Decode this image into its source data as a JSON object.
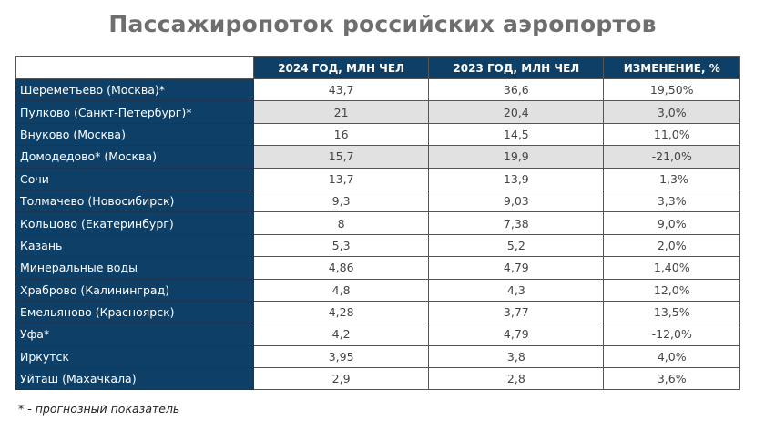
{
  "title": "Пассажиропоток российских аэропортов",
  "chart_data": {
    "type": "table",
    "title": "Пассажиропоток российских аэропортов",
    "columns": [
      "",
      "2024 ГОД, МЛН ЧЕЛ",
      "2023 ГОД, МЛН ЧЕЛ",
      "ИЗМЕНЕНИЕ, %"
    ],
    "rows": [
      {
        "name": "Шереметьево (Москва)*",
        "y2024": "43,7",
        "y2023": "36,6",
        "change": "19,50%",
        "shaded": false
      },
      {
        "name": "Пулково (Санкт-Петербург)*",
        "y2024": "21",
        "y2023": "20,4",
        "change": "3,0%",
        "shaded": true
      },
      {
        "name": "Внуково (Москва)",
        "y2024": "16",
        "y2023": "14,5",
        "change": "11,0%",
        "shaded": false
      },
      {
        "name": "Домодедово* (Москва)",
        "y2024": "15,7",
        "y2023": "19,9",
        "change": "-21,0%",
        "shaded": true
      },
      {
        "name": "Сочи",
        "y2024": "13,7",
        "y2023": "13,9",
        "change": "-1,3%",
        "shaded": false
      },
      {
        "name": "Толмачево (Новосибирск)",
        "y2024": "9,3",
        "y2023": "9,03",
        "change": "3,3%",
        "shaded": false
      },
      {
        "name": "Кольцово (Екатеринбург)",
        "y2024": "8",
        "y2023": "7,38",
        "change": "9,0%",
        "shaded": false
      },
      {
        "name": "Казань",
        "y2024": "5,3",
        "y2023": "5,2",
        "change": "2,0%",
        "shaded": false
      },
      {
        "name": "Минеральные воды",
        "y2024": "4,86",
        "y2023": "4,79",
        "change": "1,40%",
        "shaded": false
      },
      {
        "name": "Храброво (Калининград)",
        "y2024": "4,8",
        "y2023": "4,3",
        "change": "12,0%",
        "shaded": false
      },
      {
        "name": "Емельяново (Красноярск)",
        "y2024": "4,28",
        "y2023": "3,77",
        "change": "13,5%",
        "shaded": false
      },
      {
        "name": "Уфа*",
        "y2024": "4,2",
        "y2023": "4,79",
        "change": "-12,0%",
        "shaded": false
      },
      {
        "name": "Иркутск",
        "y2024": "3,95",
        "y2023": "3,8",
        "change": "4,0%",
        "shaded": false
      },
      {
        "name": "Уйташ (Махачкала)",
        "y2024": "2,9",
        "y2023": "2,8",
        "change": "3,6%",
        "shaded": false
      }
    ],
    "footnote": "* - прогнозный показатель",
    "colors": {
      "header_bg": "#0e3f66",
      "shaded_row": "#e1e1e1",
      "title": "#6e6e6e"
    }
  }
}
